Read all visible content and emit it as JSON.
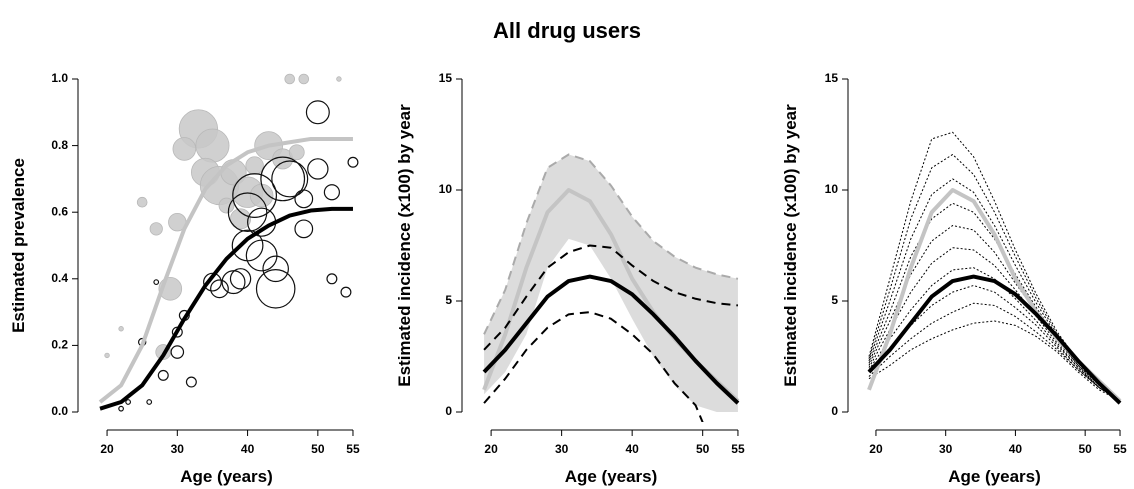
{
  "title": "All drug users",
  "chart_data": [
    {
      "type": "scatter",
      "ylabel": "Estimated prevalence",
      "xlabel": "Age (years)",
      "xlim": [
        18,
        56
      ],
      "xticks": [
        20,
        30,
        40,
        50,
        55
      ],
      "ylim": [
        0,
        1
      ],
      "yticks": [
        {
          "value": 0,
          "label": "0.0"
        },
        0.2,
        0.4,
        0.6,
        0.8,
        {
          "value": 1,
          "label": "1.0"
        }
      ],
      "x": [
        19,
        22,
        25,
        28,
        31,
        34,
        37,
        40,
        43,
        46,
        49,
        52,
        55
      ],
      "points": [
        {
          "color": "#c8c8c8",
          "filled": true,
          "x": [
            33,
            35,
            31,
            34,
            36,
            38,
            40,
            42,
            39,
            43,
            45,
            47,
            41,
            30,
            27,
            25,
            29,
            28,
            22,
            20,
            46,
            48,
            53,
            37
          ],
          "values": [
            0.85,
            0.8,
            0.79,
            0.72,
            0.68,
            0.72,
            0.66,
            0.65,
            0.58,
            0.8,
            0.76,
            0.78,
            0.74,
            0.57,
            0.55,
            0.63,
            0.37,
            0.18,
            0.25,
            0.17,
            1.0,
            1.0,
            1.0,
            0.62
          ],
          "sizes": [
            14,
            12,
            8,
            10,
            14,
            9,
            11,
            8,
            7,
            10,
            7,
            5,
            6,
            6,
            4,
            3,
            8,
            5,
            1,
            1,
            3,
            3,
            1,
            5
          ]
        },
        {
          "color": "#111111",
          "filled": false,
          "x": [
            40,
            41,
            46,
            45,
            42,
            40,
            42,
            44,
            44,
            39,
            38,
            35,
            36,
            48,
            50,
            50,
            52,
            48,
            55,
            52,
            54,
            31,
            30,
            30,
            28,
            32,
            27,
            25,
            22,
            26,
            23
          ],
          "values": [
            0.6,
            0.65,
            0.7,
            0.7,
            0.57,
            0.5,
            0.47,
            0.43,
            0.37,
            0.4,
            0.39,
            0.39,
            0.37,
            0.64,
            0.73,
            0.9,
            0.66,
            0.55,
            0.75,
            0.4,
            0.36,
            0.29,
            0.24,
            0.18,
            0.11,
            0.09,
            0.39,
            0.21,
            0.01,
            0.03,
            0.03
          ],
          "sizes": [
            14,
            16,
            13,
            16,
            10,
            11,
            11,
            9,
            14,
            7,
            8,
            6,
            6,
            6,
            7,
            8,
            5,
            6,
            3,
            3,
            3,
            3,
            3,
            4,
            3,
            3,
            1,
            2,
            1,
            1,
            1
          ]
        }
      ],
      "series": [
        {
          "color": "#c4c4c4",
          "width": 4,
          "style": "solid",
          "values": [
            0.03,
            0.08,
            0.2,
            0.38,
            0.55,
            0.67,
            0.74,
            0.78,
            0.8,
            0.81,
            0.82,
            0.82,
            0.82
          ]
        },
        {
          "color": "#000000",
          "width": 4,
          "style": "solid",
          "values": [
            0.01,
            0.03,
            0.08,
            0.17,
            0.28,
            0.38,
            0.46,
            0.52,
            0.56,
            0.59,
            0.605,
            0.61,
            0.61
          ]
        }
      ]
    },
    {
      "type": "line",
      "ylabel": "Estimated incidence (x100) by year",
      "xlabel": "Age (years)",
      "xlim": [
        18,
        56
      ],
      "xticks": [
        20,
        30,
        40,
        50,
        55
      ],
      "ylim": [
        0,
        15
      ],
      "yticks": [
        0,
        5,
        10,
        15
      ],
      "x": [
        19,
        22,
        25,
        28,
        31,
        34,
        37,
        40,
        43,
        46,
        49,
        52,
        55
      ],
      "band": {
        "color": "#dcdcdc",
        "edge": "#aaaaaa",
        "upper": [
          3.5,
          5.5,
          8.5,
          11.0,
          11.6,
          11.3,
          10.2,
          8.8,
          7.7,
          7.0,
          6.5,
          6.2,
          6.0
        ],
        "lower": [
          0.8,
          1.8,
          3.5,
          6.5,
          7.8,
          7.5,
          6.0,
          4.2,
          2.5,
          1.2,
          0.3,
          0,
          0
        ]
      },
      "series": [
        {
          "color": "#c4c4c4",
          "width": 4,
          "style": "solid",
          "values": [
            1.0,
            3.5,
            6.5,
            9.0,
            10.0,
            9.5,
            8.0,
            6.0,
            4.5,
            3.3,
            2.3,
            1.4,
            0.5
          ]
        },
        {
          "color": "#000000",
          "width": 2,
          "style": "dashed",
          "values": [
            2.8,
            3.8,
            5.2,
            6.5,
            7.2,
            7.5,
            7.4,
            6.6,
            5.9,
            5.4,
            5.1,
            4.9,
            4.8
          ]
        },
        {
          "color": "#000000",
          "width": 2,
          "style": "dashed",
          "values": [
            0.4,
            1.5,
            2.8,
            3.8,
            4.4,
            4.5,
            4.2,
            3.5,
            2.6,
            1.3,
            0.3,
            -2,
            -4
          ]
        },
        {
          "color": "#000000",
          "width": 4,
          "style": "solid",
          "values": [
            1.8,
            2.8,
            4.0,
            5.2,
            5.9,
            6.1,
            5.9,
            5.3,
            4.4,
            3.4,
            2.3,
            1.3,
            0.4
          ]
        }
      ]
    },
    {
      "type": "line",
      "ylabel": "Estimated incidence (x100) by year",
      "xlabel": "Age (years)",
      "xlim": [
        18,
        56
      ],
      "xticks": [
        20,
        30,
        40,
        50,
        55
      ],
      "ylim": [
        0,
        15
      ],
      "yticks": [
        0,
        5,
        10,
        15
      ],
      "x": [
        19,
        22,
        25,
        28,
        31,
        34,
        37,
        40,
        43,
        46,
        49,
        52,
        55
      ],
      "series": [
        {
          "color": "#000000",
          "width": 1,
          "style": "dotted",
          "values": [
            2.5,
            6,
            9.5,
            12.3,
            12.6,
            11.5,
            9.5,
            7.3,
            5.3,
            3.6,
            2.3,
            1.2,
            0.5
          ]
        },
        {
          "color": "#000000",
          "width": 1,
          "style": "dotted",
          "values": [
            2.4,
            5.5,
            8.7,
            11.0,
            11.6,
            10.7,
            9.0,
            7.0,
            5.1,
            3.5,
            2.2,
            1.2,
            0.5
          ]
        },
        {
          "color": "#000000",
          "width": 1,
          "style": "dotted",
          "values": [
            2.3,
            5.0,
            7.8,
            9.8,
            10.5,
            9.9,
            8.4,
            6.6,
            4.9,
            3.4,
            2.2,
            1.2,
            0.5
          ]
        },
        {
          "color": "#000000",
          "width": 1,
          "style": "dotted",
          "values": [
            2.2,
            4.5,
            7.0,
            8.7,
            9.4,
            9.0,
            7.8,
            6.2,
            4.7,
            3.3,
            2.1,
            1.2,
            0.5
          ]
        },
        {
          "color": "#000000",
          "width": 1,
          "style": "dotted",
          "values": [
            2.1,
            4.1,
            6.2,
            7.7,
            8.4,
            8.2,
            7.2,
            5.8,
            4.5,
            3.2,
            2.1,
            1.1,
            0.5
          ]
        },
        {
          "color": "#000000",
          "width": 1,
          "style": "dotted",
          "values": [
            2.0,
            3.7,
            5.4,
            6.7,
            7.4,
            7.3,
            6.6,
            5.5,
            4.3,
            3.1,
            2.0,
            1.1,
            0.5
          ]
        },
        {
          "color": "#000000",
          "width": 1,
          "style": "dotted",
          "values": [
            1.9,
            3.3,
            4.6,
            5.7,
            6.4,
            6.5,
            6.0,
            5.1,
            4.1,
            3.0,
            2.0,
            1.1,
            0.5
          ]
        },
        {
          "color": "#000000",
          "width": 1,
          "style": "dotted",
          "values": [
            1.8,
            2.9,
            3.9,
            4.8,
            5.4,
            5.7,
            5.4,
            4.7,
            3.9,
            2.9,
            1.9,
            1.1,
            0.5
          ]
        },
        {
          "color": "#000000",
          "width": 1,
          "style": "dotted",
          "values": [
            1.6,
            2.5,
            3.3,
            4.0,
            4.5,
            4.9,
            4.8,
            4.3,
            3.6,
            2.8,
            1.9,
            1.1,
            0.5
          ]
        },
        {
          "color": "#000000",
          "width": 1,
          "style": "dotted",
          "values": [
            1.5,
            2.1,
            2.8,
            3.3,
            3.7,
            4.0,
            4.1,
            3.9,
            3.4,
            2.7,
            1.8,
            1.0,
            0.5
          ]
        },
        {
          "color": "#c4c4c4",
          "width": 4,
          "style": "solid",
          "values": [
            1.0,
            3.5,
            6.5,
            9.0,
            10.0,
            9.5,
            8.0,
            6.0,
            4.5,
            3.3,
            2.3,
            1.4,
            0.5
          ]
        },
        {
          "color": "#000000",
          "width": 4,
          "style": "solid",
          "values": [
            1.8,
            2.8,
            4.0,
            5.2,
            5.9,
            6.1,
            5.9,
            5.3,
            4.4,
            3.4,
            2.3,
            1.3,
            0.4
          ]
        }
      ]
    }
  ]
}
